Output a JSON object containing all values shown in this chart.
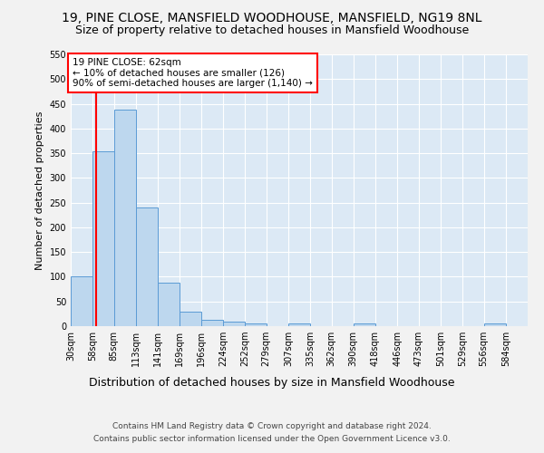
{
  "title": "19, PINE CLOSE, MANSFIELD WOODHOUSE, MANSFIELD, NG19 8NL",
  "subtitle": "Size of property relative to detached houses in Mansfield Woodhouse",
  "xlabel": "Distribution of detached houses by size in Mansfield Woodhouse",
  "ylabel": "Number of detached properties",
  "footer_line1": "Contains HM Land Registry data © Crown copyright and database right 2024.",
  "footer_line2": "Contains public sector information licensed under the Open Government Licence v3.0.",
  "bins": [
    30,
    58,
    85,
    113,
    141,
    169,
    196,
    224,
    252,
    279,
    307,
    335,
    362,
    390,
    418,
    446,
    473,
    501,
    529,
    556,
    584
  ],
  "bin_labels": [
    "30sqm",
    "58sqm",
    "85sqm",
    "113sqm",
    "141sqm",
    "169sqm",
    "196sqm",
    "224sqm",
    "252sqm",
    "279sqm",
    "307sqm",
    "335sqm",
    "362sqm",
    "390sqm",
    "418sqm",
    "446sqm",
    "473sqm",
    "501sqm",
    "529sqm",
    "556sqm",
    "584sqm"
  ],
  "values": [
    100,
    353,
    438,
    240,
    88,
    29,
    13,
    9,
    6,
    0,
    5,
    0,
    0,
    5,
    0,
    0,
    0,
    0,
    0,
    5
  ],
  "bar_color": "#bdd7ee",
  "bar_edge_color": "#5b9bd5",
  "red_line_x": 62,
  "annotation_title": "19 PINE CLOSE: 62sqm",
  "annotation_line1": "← 10% of detached houses are smaller (126)",
  "annotation_line2": "90% of semi-detached houses are larger (1,140) →",
  "ylim": [
    0,
    550
  ],
  "yticks": [
    0,
    50,
    100,
    150,
    200,
    250,
    300,
    350,
    400,
    450,
    500,
    550
  ],
  "bar_color_fill": "#bdd7ee",
  "bar_edge_color_val": "#5b9bd5",
  "axes_bg_color": "#dce9f5",
  "grid_color": "#ffffff",
  "fig_bg_color": "#f2f2f2",
  "title_fontsize": 10,
  "subtitle_fontsize": 9,
  "ylabel_fontsize": 8,
  "xlabel_fontsize": 9,
  "tick_fontsize": 7,
  "annotation_fontsize": 7.5,
  "footer_fontsize": 6.5
}
